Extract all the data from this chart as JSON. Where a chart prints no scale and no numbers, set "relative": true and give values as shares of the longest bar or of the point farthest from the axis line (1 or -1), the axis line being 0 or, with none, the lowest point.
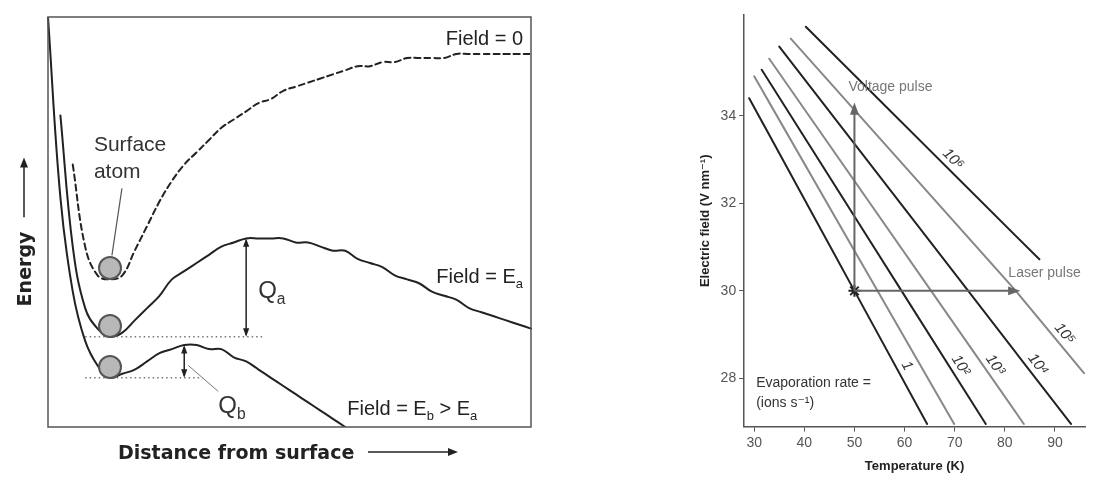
{
  "chart_data": [
    {
      "type": "line",
      "relative": true,
      "xlabel": "Distance from surface",
      "ylabel": "Energy",
      "legend": false,
      "grid": false,
      "marker": "none",
      "categories": [
        null,
        null,
        null,
        null,
        null,
        null,
        null,
        null,
        null,
        null,
        null,
        null,
        null,
        null,
        null,
        null,
        null,
        null,
        null,
        null,
        null,
        null,
        null,
        null,
        null,
        null,
        null,
        null,
        null,
        null,
        null,
        null,
        null,
        null,
        null,
        null,
        null,
        null,
        null,
        null
      ],
      "series": [
        {
          "name": "Field = 0",
          "color": "#222222",
          "line_style": "dashed",
          "values": [
            null,
            null,
            0.64,
            0.44,
            0.37,
            0.36,
            0.37,
            0.43,
            0.49,
            0.55,
            0.6,
            0.64,
            0.67,
            0.7,
            0.73,
            0.75,
            0.77,
            0.79,
            0.8,
            0.82,
            0.83,
            0.84,
            0.85,
            0.86,
            0.87,
            0.88,
            0.88,
            0.89,
            0.89,
            0.9,
            0.9,
            0.9,
            0.9,
            0.91,
            0.91,
            0.91,
            0.91,
            0.91,
            0.91,
            0.91
          ]
        },
        {
          "name": "Field = E$_{a}$",
          "color": "#222222",
          "line_style": "solid",
          "values": [
            null,
            0.76,
            0.44,
            0.29,
            0.24,
            0.22,
            0.23,
            0.26,
            0.29,
            0.32,
            0.36,
            0.38,
            0.4,
            0.42,
            0.44,
            0.45,
            0.46,
            0.46,
            0.46,
            0.46,
            0.45,
            0.45,
            0.44,
            0.43,
            0.43,
            0.41,
            0.4,
            0.39,
            0.37,
            0.36,
            0.35,
            0.33,
            0.32,
            0.31,
            0.29,
            0.28,
            0.27,
            0.26,
            0.25,
            0.24
          ]
        },
        {
          "name": "Field = E$_{b}$ > E$_{a}$",
          "color": "#222222",
          "line_style": "solid",
          "values": [
            1.0,
            0.56,
            0.33,
            0.21,
            0.15,
            0.12,
            0.13,
            0.14,
            0.16,
            0.18,
            0.19,
            0.2,
            0.2,
            0.19,
            0.19,
            0.17,
            0.16,
            0.14,
            0.12,
            0.1,
            0.08,
            0.06,
            0.04,
            0.02,
            0,
            null,
            null,
            null,
            null,
            null,
            null,
            null,
            null,
            null,
            null,
            null,
            null,
            null,
            null,
            null
          ]
        }
      ],
      "ref_lines": [
        {
          "axis": "y",
          "value": 0.22,
          "line_style": "dotted",
          "color": "#777777"
        },
        {
          "axis": "y",
          "value": 0.12,
          "line_style": "dotted",
          "color": "#777777"
        }
      ],
      "annotations": [
        "Surface atom",
        "Q$_{a}$",
        "Q$_{b}$"
      ]
    },
    {
      "type": "line",
      "xlabel": "Temperature (K)",
      "ylabel": "Electric field (V nm⁻¹)",
      "legend": false,
      "grid": false,
      "marker": "none",
      "line_style": "solid",
      "xlim": [
        28,
        96
      ],
      "xticks": [
        30,
        40,
        50,
        60,
        70,
        80,
        90
      ],
      "ylim": [
        26.9,
        36.3
      ],
      "yticks": [
        28,
        30,
        32,
        34
      ],
      "series": [
        {
          "name": "1",
          "color": "#222222",
          "x": [
            29,
            50,
            64.5
          ],
          "values": [
            34.4,
            30,
            26.96
          ]
        },
        {
          "color": "#888888",
          "x": [
            30,
            54.6,
            69.9
          ],
          "values": [
            34.9,
            30,
            26.96
          ]
        },
        {
          "name": "10²",
          "color": "#222222",
          "x": [
            31.5,
            59.4,
            76.2
          ],
          "values": [
            35.05,
            30,
            26.96
          ]
        },
        {
          "name": "10³",
          "color": "#888888",
          "x": [
            33,
            65.3,
            83.8
          ],
          "values": [
            35.3,
            30,
            26.96
          ]
        },
        {
          "name": "10⁴",
          "color": "#222222",
          "x": [
            35,
            72.7,
            93.2
          ],
          "values": [
            35.58,
            30,
            26.96
          ]
        },
        {
          "name": "10⁵",
          "color": "#888888",
          "x": [
            37.3,
            82.2,
            95.8
          ],
          "values": [
            35.76,
            30,
            28.12
          ]
        },
        {
          "name": "10⁶",
          "color": "#222222",
          "x": [
            40.3,
            86.9
          ],
          "values": [
            36.03,
            30.72
          ]
        },
        {
          "type": "scatter",
          "marker": "cross",
          "color": "#222222",
          "x": [
            50
          ],
          "values": [
            30
          ]
        }
      ],
      "annotations": [
        {
          "text": "Voltage pulse",
          "x": 50,
          "y": 34.3
        },
        {
          "text": "Laser pulse",
          "x": 83.1,
          "y": 30
        },
        "Evaporation rate =\n(ions s⁻¹)"
      ]
    }
  ]
}
